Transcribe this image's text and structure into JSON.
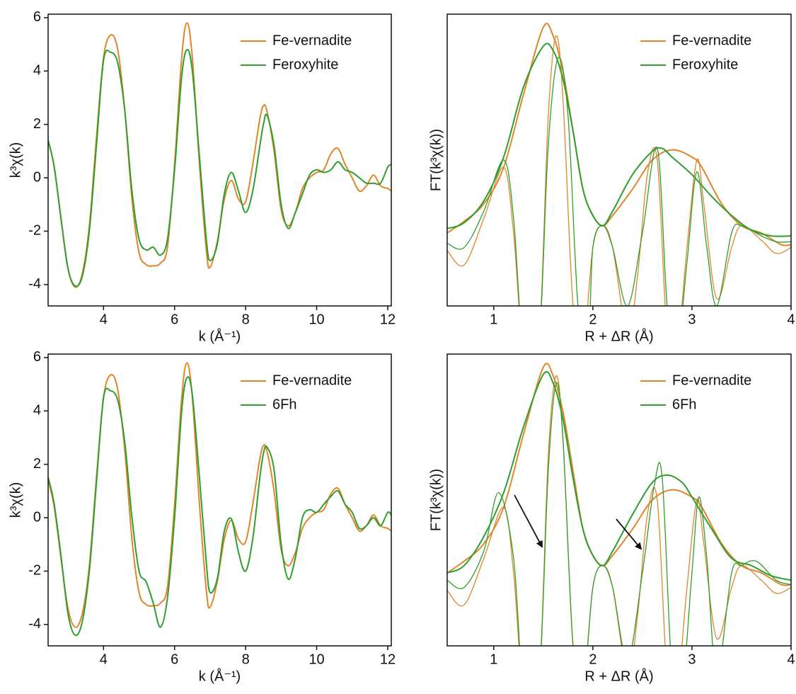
{
  "chart_data": [
    {
      "type": "line",
      "xlabel": "k (Å⁻¹)",
      "ylabel": "k³χ(k)",
      "xlim": [
        2.44,
        12.1
      ],
      "ylim": [
        -4.8,
        6.13
      ],
      "xticks": [
        4,
        6,
        8,
        10,
        12
      ],
      "yticks": [
        -4,
        -2,
        0,
        2,
        4,
        6
      ],
      "x": [
        2.4,
        2.6,
        2.8,
        3.0,
        3.2,
        3.4,
        3.6,
        3.8,
        4.0,
        4.2,
        4.4,
        4.6,
        4.8,
        5.0,
        5.2,
        5.4,
        5.6,
        5.8,
        6.0,
        6.2,
        6.35,
        6.5,
        6.7,
        6.9,
        7.0,
        7.2,
        7.4,
        7.6,
        7.8,
        8.0,
        8.2,
        8.4,
        8.5,
        8.6,
        8.8,
        9.0,
        9.2,
        9.4,
        9.6,
        9.8,
        10.0,
        10.2,
        10.4,
        10.6,
        10.8,
        11.0,
        11.2,
        11.4,
        11.6,
        11.8,
        12.0,
        12.1
      ],
      "series": [
        {
          "name": "Fe-vernadite",
          "color": "#e0862a",
          "values": [
            1.6,
            0.5,
            -1.5,
            -3.4,
            -4.1,
            -3.6,
            -1.8,
            1.5,
            4.5,
            5.35,
            4.8,
            2.5,
            -0.8,
            -2.8,
            -3.25,
            -3.3,
            -3.2,
            -2.6,
            0.5,
            4.5,
            5.8,
            4.5,
            0.5,
            -2.8,
            -3.35,
            -2.4,
            -0.8,
            -0.1,
            -0.8,
            -0.9,
            0.5,
            2.2,
            2.7,
            2.5,
            1.0,
            -1.2,
            -1.8,
            -1.3,
            -0.4,
            0.0,
            0.2,
            0.3,
            0.9,
            1.1,
            0.5,
            0.0,
            -0.5,
            -0.3,
            0.1,
            -0.3,
            -0.4,
            -0.5
          ]
        },
        {
          "name": "Feroxyhite",
          "color": "#2f9e2f",
          "values": [
            1.6,
            0.5,
            -1.5,
            -3.4,
            -4.05,
            -3.7,
            -2.0,
            1.2,
            4.4,
            4.7,
            4.3,
            2.5,
            -0.5,
            -2.3,
            -2.7,
            -2.6,
            -2.9,
            -2.3,
            0.3,
            3.8,
            4.8,
            4.0,
            0.8,
            -2.4,
            -3.1,
            -2.5,
            -0.6,
            0.2,
            -0.5,
            -1.3,
            -0.5,
            1.2,
            2.0,
            2.35,
            1.2,
            -1.0,
            -1.9,
            -1.3,
            -0.6,
            0.1,
            0.3,
            0.2,
            0.3,
            0.6,
            0.3,
            0.2,
            0.0,
            -0.2,
            -0.2,
            -0.2,
            0.4,
            0.5
          ]
        }
      ]
    },
    {
      "type": "line",
      "xlabel": "R + ΔR (Å)",
      "ylabel": "FT(k³χ(k))",
      "xlim": [
        0.53,
        4
      ],
      "ylim": [
        -1,
        1
      ],
      "xticks": [
        1,
        2,
        3,
        4
      ],
      "series": [
        {
          "name": "Fe-vernadite",
          "color": "#e0862a",
          "x": [
            0.53,
            0.7,
            0.9,
            1.1,
            1.3,
            1.5,
            1.6,
            1.7,
            1.8,
            1.9,
            2.0,
            2.1,
            2.2,
            2.4,
            2.6,
            2.8,
            3.0,
            3.1,
            3.3,
            3.5,
            3.7,
            3.9,
            4.0
          ],
          "values": [
            -0.5,
            -0.42,
            -0.3,
            -0.05,
            0.45,
            0.91,
            0.85,
            0.6,
            0.2,
            -0.2,
            -0.38,
            -0.45,
            -0.38,
            -0.2,
            0.0,
            0.07,
            0.02,
            -0.05,
            -0.3,
            -0.45,
            -0.5,
            -0.58,
            -0.58
          ],
          "real_x": [
            0.53,
            0.7,
            0.9,
            1.1,
            1.2,
            1.3,
            1.45,
            1.55,
            1.63,
            1.7,
            1.8,
            1.9,
            2.0,
            2.1,
            2.2,
            2.35,
            2.45,
            2.55,
            2.65,
            2.75,
            2.85,
            2.95,
            3.05,
            3.12,
            3.25,
            3.4,
            3.5,
            3.7,
            3.85,
            4.0
          ],
          "real": [
            -0.62,
            -0.72,
            -0.4,
            -0.05,
            -0.5,
            -1.3,
            -1.3,
            0.3,
            0.85,
            0.4,
            -1.0,
            -1.3,
            -0.6,
            -0.45,
            -0.6,
            -1.2,
            -0.8,
            -0.1,
            0.0,
            -1.2,
            -1.3,
            -0.6,
            0.0,
            -0.3,
            -0.95,
            -0.6,
            -0.45,
            -0.55,
            -0.64,
            -0.6
          ]
        },
        {
          "name": "Feroxyhite",
          "color": "#2f9e2f",
          "x": [
            0.53,
            0.7,
            0.9,
            1.1,
            1.3,
            1.5,
            1.6,
            1.7,
            1.8,
            1.9,
            2.0,
            2.1,
            2.2,
            2.4,
            2.6,
            2.7,
            2.8,
            3.0,
            3.2,
            3.4,
            3.6,
            3.8,
            4.0
          ],
          "values": [
            -0.47,
            -0.43,
            -0.28,
            0.02,
            0.5,
            0.78,
            0.75,
            0.55,
            0.2,
            -0.2,
            -0.38,
            -0.45,
            -0.35,
            -0.1,
            0.06,
            0.08,
            0.02,
            -0.1,
            -0.25,
            -0.38,
            -0.48,
            -0.52,
            -0.52
          ],
          "real_x": [
            0.53,
            0.7,
            0.9,
            1.1,
            1.2,
            1.3,
            1.45,
            1.55,
            1.65,
            1.75,
            1.85,
            1.95,
            2.0,
            2.1,
            2.2,
            2.35,
            2.5,
            2.65,
            2.75,
            2.85,
            2.95,
            3.05,
            3.15,
            3.25,
            3.4,
            3.5,
            3.7,
            3.85,
            4.0
          ],
          "real": [
            -0.57,
            -0.6,
            -0.35,
            0.0,
            -0.4,
            -1.3,
            -1.3,
            0.1,
            0.7,
            0.3,
            -1.0,
            -1.3,
            -0.6,
            -0.45,
            -0.6,
            -1.0,
            -0.5,
            0.08,
            -1.0,
            -1.3,
            -0.7,
            -0.08,
            -0.6,
            -1.0,
            -0.5,
            -0.45,
            -0.52,
            -0.56,
            -0.56
          ]
        }
      ]
    },
    {
      "type": "line",
      "xlabel": "k (Å⁻¹)",
      "ylabel": "k³χ(k)",
      "xlim": [
        2.44,
        12.1
      ],
      "ylim": [
        -4.8,
        6.13
      ],
      "xticks": [
        4,
        6,
        8,
        10,
        12
      ],
      "yticks": [
        -4,
        -2,
        0,
        2,
        4,
        6
      ],
      "x": [
        2.4,
        2.6,
        2.8,
        3.0,
        3.2,
        3.4,
        3.6,
        3.8,
        4.0,
        4.2,
        4.4,
        4.6,
        4.8,
        5.0,
        5.2,
        5.4,
        5.6,
        5.8,
        6.0,
        6.2,
        6.35,
        6.5,
        6.7,
        6.9,
        7.0,
        7.2,
        7.4,
        7.6,
        7.8,
        8.0,
        8.2,
        8.4,
        8.5,
        8.6,
        8.8,
        9.0,
        9.2,
        9.4,
        9.6,
        9.8,
        10.0,
        10.2,
        10.4,
        10.6,
        10.8,
        11.0,
        11.2,
        11.4,
        11.6,
        11.8,
        12.0,
        12.1
      ],
      "series": [
        {
          "name": "Fe-vernadite",
          "color": "#e0862a",
          "values": [
            1.6,
            0.5,
            -1.5,
            -3.4,
            -4.1,
            -3.6,
            -1.8,
            1.5,
            4.5,
            5.35,
            4.8,
            2.5,
            -0.8,
            -2.8,
            -3.25,
            -3.3,
            -3.2,
            -2.6,
            0.5,
            4.5,
            5.8,
            4.5,
            0.5,
            -2.8,
            -3.35,
            -2.4,
            -0.8,
            -0.1,
            -0.8,
            -0.9,
            0.5,
            2.2,
            2.7,
            2.5,
            1.0,
            -1.2,
            -1.8,
            -1.3,
            -0.4,
            0.0,
            0.2,
            0.3,
            0.9,
            1.1,
            0.5,
            0.0,
            -0.5,
            -0.3,
            0.1,
            -0.3,
            -0.4,
            -0.5
          ]
        },
        {
          "name": "6Fh",
          "color": "#2f9e2f",
          "values": [
            1.7,
            0.6,
            -1.4,
            -3.6,
            -4.4,
            -3.9,
            -2.0,
            1.3,
            4.5,
            4.75,
            4.4,
            2.8,
            0.0,
            -2.0,
            -2.4,
            -3.2,
            -4.1,
            -3.0,
            0.0,
            4.0,
            5.25,
            4.6,
            1.5,
            -1.8,
            -2.8,
            -2.3,
            -0.5,
            -0.05,
            -1.3,
            -2.0,
            -0.8,
            1.5,
            2.4,
            2.65,
            1.8,
            -1.0,
            -2.3,
            -1.5,
            0.0,
            0.3,
            0.2,
            0.5,
            0.8,
            1.0,
            0.5,
            0.2,
            -0.4,
            -0.3,
            0.0,
            -0.3,
            0.2,
            0.1
          ]
        }
      ]
    },
    {
      "type": "line",
      "xlabel": "R + ΔR (Å)",
      "ylabel": "FT(k³χ(k))",
      "xlim": [
        0.53,
        4
      ],
      "ylim": [
        -1,
        1
      ],
      "xticks": [
        1,
        2,
        3,
        4
      ],
      "series": [
        {
          "name": "Fe-vernadite",
          "color": "#e0862a",
          "x": [
            0.53,
            0.7,
            0.9,
            1.1,
            1.3,
            1.5,
            1.6,
            1.7,
            1.8,
            1.9,
            2.0,
            2.1,
            2.2,
            2.4,
            2.6,
            2.8,
            3.0,
            3.1,
            3.3,
            3.5,
            3.7,
            3.9,
            4.0
          ],
          "values": [
            -0.5,
            -0.42,
            -0.3,
            -0.05,
            0.45,
            0.91,
            0.85,
            0.6,
            0.2,
            -0.2,
            -0.38,
            -0.45,
            -0.38,
            -0.2,
            0.0,
            0.07,
            0.02,
            -0.05,
            -0.3,
            -0.45,
            -0.5,
            -0.58,
            -0.58
          ],
          "real_x": [
            0.53,
            0.7,
            0.9,
            1.1,
            1.2,
            1.3,
            1.45,
            1.55,
            1.63,
            1.7,
            1.8,
            1.9,
            2.0,
            2.1,
            2.2,
            2.35,
            2.45,
            2.55,
            2.65,
            2.75,
            2.85,
            2.95,
            3.05,
            3.12,
            3.25,
            3.4,
            3.5,
            3.7,
            3.85,
            4.0
          ],
          "real": [
            -0.62,
            -0.72,
            -0.4,
            -0.05,
            -0.5,
            -1.3,
            -1.3,
            0.3,
            0.85,
            0.4,
            -1.0,
            -1.3,
            -0.6,
            -0.45,
            -0.6,
            -1.2,
            -0.8,
            -0.1,
            0.0,
            -1.2,
            -1.3,
            -0.6,
            0.0,
            -0.3,
            -0.95,
            -0.6,
            -0.45,
            -0.55,
            -0.64,
            -0.6
          ]
        },
        {
          "name": "6Fh",
          "color": "#2f9e2f",
          "x": [
            0.53,
            0.7,
            0.9,
            1.1,
            1.3,
            1.5,
            1.6,
            1.7,
            1.8,
            1.9,
            2.0,
            2.1,
            2.2,
            2.4,
            2.6,
            2.75,
            2.9,
            3.0,
            3.2,
            3.4,
            3.6,
            3.8,
            4.0
          ],
          "values": [
            -0.5,
            -0.45,
            -0.25,
            0.05,
            0.5,
            0.86,
            0.8,
            0.55,
            0.15,
            -0.2,
            -0.38,
            -0.45,
            -0.35,
            -0.1,
            0.12,
            0.17,
            0.12,
            0.02,
            -0.2,
            -0.4,
            -0.45,
            -0.52,
            -0.55
          ],
          "real_x": [
            0.53,
            0.7,
            0.9,
            1.05,
            1.2,
            1.3,
            1.45,
            1.55,
            1.63,
            1.7,
            1.8,
            1.9,
            2.0,
            2.1,
            2.2,
            2.35,
            2.5,
            2.62,
            2.7,
            2.8,
            2.9,
            3.0,
            3.07,
            3.15,
            3.25,
            3.4,
            3.5,
            3.65,
            3.85,
            4.0
          ],
          "real": [
            -0.55,
            -0.6,
            -0.35,
            0.05,
            -0.4,
            -1.3,
            -1.3,
            0.2,
            0.8,
            0.4,
            -1.0,
            -1.3,
            -0.6,
            -0.45,
            -0.6,
            -1.1,
            -0.5,
            0.1,
            0.15,
            -1.2,
            -1.3,
            -0.5,
            0.02,
            -0.4,
            -1.2,
            -0.5,
            -0.45,
            -0.42,
            -0.55,
            -0.58
          ]
        }
      ]
    }
  ]
}
